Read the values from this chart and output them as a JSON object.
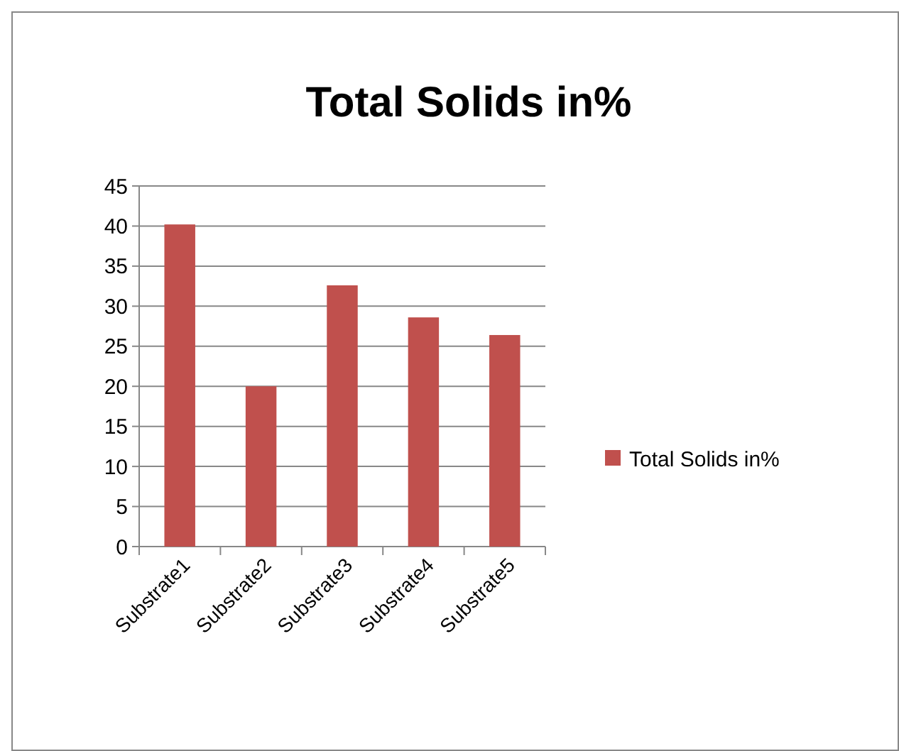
{
  "chart_data": {
    "type": "bar",
    "title": "Total Solids in%",
    "categories": [
      "Substrate1",
      "Substrate2",
      "Substrate3",
      "Substrate4",
      "Substrate5"
    ],
    "series": [
      {
        "name": "Total Solids in%",
        "color": "#c0504d",
        "values": [
          40.2,
          20,
          32.6,
          28.6,
          26.4
        ]
      }
    ],
    "ylim": [
      0,
      45
    ],
    "yticks": [
      0,
      5,
      10,
      15,
      20,
      25,
      30,
      35,
      40,
      45
    ],
    "grid": "y",
    "legend": "right"
  }
}
